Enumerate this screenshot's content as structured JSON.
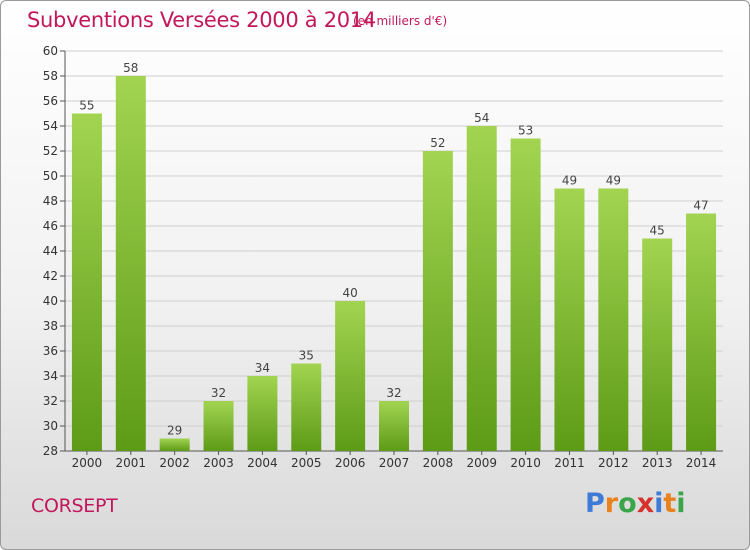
{
  "header": {
    "title": "Subventions Versées 2000 à 2014",
    "unit_note": "(en milliers d'€)"
  },
  "footer": {
    "commune": "CORSEPT",
    "logo": "Proxiti"
  },
  "colors": {
    "title": "#c2185b",
    "bar_light": "#9fd24d",
    "bar_dark": "#5c9a16",
    "grid": "#cfcfcf"
  },
  "chart_data": {
    "type": "bar",
    "title": "Subventions Versées 2000 à 2014",
    "subtitle": "(en milliers d'€)",
    "xlabel": "",
    "ylabel": "",
    "categories": [
      "2000",
      "2001",
      "2002",
      "2003",
      "2004",
      "2005",
      "2006",
      "2007",
      "2008",
      "2009",
      "2010",
      "2011",
      "2012",
      "2013",
      "2014"
    ],
    "values": [
      55,
      58,
      29,
      32,
      34,
      35,
      40,
      32,
      52,
      54,
      53,
      49,
      49,
      45,
      47
    ],
    "ylim": [
      28,
      60
    ],
    "ytick_step": 2,
    "grid": true,
    "data_labels": true
  }
}
